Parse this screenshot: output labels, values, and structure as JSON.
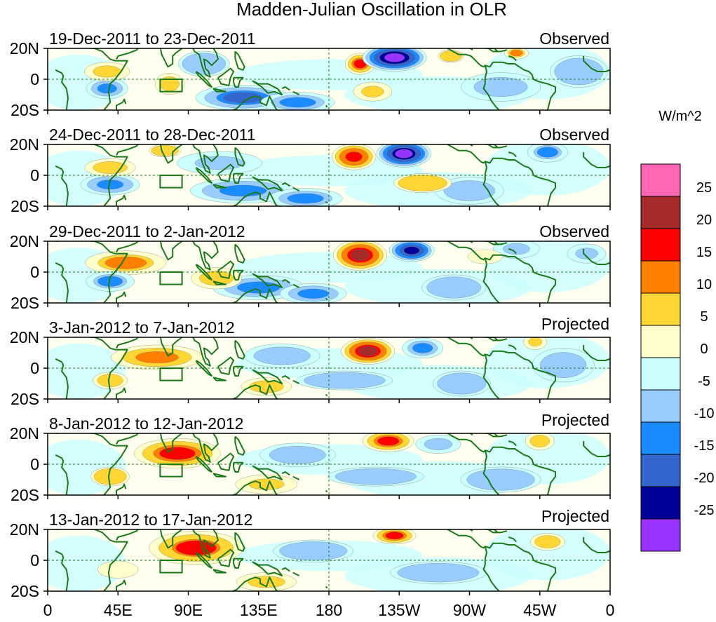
{
  "chart_data": {
    "type": "heatmap",
    "title": "Madden-Julian Oscillation in OLR",
    "variable": "OLR anomaly",
    "units": "W/m^2",
    "x_tick_labels": [
      "0",
      "45E",
      "90E",
      "135E",
      "180",
      "135W",
      "90W",
      "45W",
      "0"
    ],
    "x_ticks_deg": [
      0,
      45,
      90,
      135,
      180,
      225,
      270,
      315,
      360
    ],
    "xlim_deg_east": [
      0,
      360
    ],
    "y_tick_labels": [
      "20N",
      "0",
      "20S"
    ],
    "y_ticks_deg": [
      20,
      0,
      -20
    ],
    "ylim_deg": [
      -20,
      20
    ],
    "colorbar": {
      "label": "W/m^2",
      "tick_labels": [
        "25",
        "20",
        "15",
        "10",
        "5",
        "0",
        "-5",
        "-10",
        "-15",
        "-20",
        "-25"
      ],
      "tick_values": [
        25,
        20,
        15,
        10,
        5,
        0,
        -5,
        -10,
        -15,
        -20,
        -25
      ],
      "bins": [
        {
          "min": 25,
          "max": null,
          "color": "#ff66b3"
        },
        {
          "min": 20,
          "max": 25,
          "color": "#a52a2a"
        },
        {
          "min": 15,
          "max": 20,
          "color": "#ff0000"
        },
        {
          "min": 10,
          "max": 15,
          "color": "#ff7f00"
        },
        {
          "min": 5,
          "max": 10,
          "color": "#ffd633"
        },
        {
          "min": 0,
          "max": 5,
          "color": "#ffffcc"
        },
        {
          "min": -5,
          "max": 0,
          "color": "#ccffff"
        },
        {
          "min": -10,
          "max": -5,
          "color": "#99ccff"
        },
        {
          "min": -15,
          "max": -10,
          "color": "#1a8cff"
        },
        {
          "min": -20,
          "max": -15,
          "color": "#3366cc"
        },
        {
          "min": -25,
          "max": -20,
          "color": "#000099"
        },
        {
          "min": null,
          "max": -25,
          "color": "#9933ff"
        }
      ]
    },
    "panels": [
      {
        "period": "19-Dec-2011 to 23-Dec-2011",
        "status": "Observed",
        "anomalies": [
          {
            "lon": 200,
            "lat": 10,
            "value": 17,
            "sx": 7,
            "sy": 5
          },
          {
            "lon": 222,
            "lat": 14,
            "value": -28,
            "sx": 14,
            "sy": 6
          },
          {
            "lon": 208,
            "lat": -8,
            "value": 10,
            "sx": 10,
            "sy": 5
          },
          {
            "lon": 125,
            "lat": -12,
            "value": -17,
            "sx": 22,
            "sy": 6
          },
          {
            "lon": 160,
            "lat": -15,
            "value": -13,
            "sx": 18,
            "sy": 5
          },
          {
            "lon": 38,
            "lat": -6,
            "value": -14,
            "sx": 10,
            "sy": 5
          },
          {
            "lon": 38,
            "lat": 5,
            "value": 9,
            "sx": 12,
            "sy": 5
          },
          {
            "lon": 78,
            "lat": -3,
            "value": 8,
            "sx": 8,
            "sy": 6
          },
          {
            "lon": 100,
            "lat": 10,
            "value": -6,
            "sx": 16,
            "sy": 8
          },
          {
            "lon": 258,
            "lat": 15,
            "value": 6,
            "sx": 8,
            "sy": 4
          },
          {
            "lon": 300,
            "lat": 17,
            "value": 12,
            "sx": 6,
            "sy": 3
          },
          {
            "lon": 290,
            "lat": -5,
            "value": -8,
            "sx": 22,
            "sy": 8
          },
          {
            "lon": 340,
            "lat": 5,
            "value": -6,
            "sx": 18,
            "sy": 10
          }
        ]
      },
      {
        "period": "24-Dec-2011 to 28-Dec-2011",
        "status": "Observed",
        "anomalies": [
          {
            "lon": 196,
            "lat": 12,
            "value": 20,
            "sx": 10,
            "sy": 6
          },
          {
            "lon": 228,
            "lat": 14,
            "value": -27,
            "sx": 12,
            "sy": 6
          },
          {
            "lon": 125,
            "lat": -10,
            "value": -15,
            "sx": 25,
            "sy": 6
          },
          {
            "lon": 165,
            "lat": -15,
            "value": -13,
            "sx": 18,
            "sy": 5
          },
          {
            "lon": 40,
            "lat": -6,
            "value": -15,
            "sx": 14,
            "sy": 5
          },
          {
            "lon": 40,
            "lat": 5,
            "value": 8,
            "sx": 14,
            "sy": 5
          },
          {
            "lon": 110,
            "lat": 8,
            "value": -10,
            "sx": 22,
            "sy": 6
          },
          {
            "lon": 75,
            "lat": 16,
            "value": 6,
            "sx": 10,
            "sy": 4
          },
          {
            "lon": 320,
            "lat": 15,
            "value": -12,
            "sx": 10,
            "sy": 5
          },
          {
            "lon": 270,
            "lat": -10,
            "value": -7,
            "sx": 20,
            "sy": 8
          },
          {
            "lon": 240,
            "lat": -5,
            "value": 6,
            "sx": 18,
            "sy": 6
          }
        ]
      },
      {
        "period": "29-Dec-2011 to 2-Jan-2012",
        "status": "Observed",
        "anomalies": [
          {
            "lon": 200,
            "lat": 11,
            "value": 22,
            "sx": 12,
            "sy": 7
          },
          {
            "lon": 233,
            "lat": 14,
            "value": -24,
            "sx": 10,
            "sy": 5
          },
          {
            "lon": 50,
            "lat": 6,
            "value": 12,
            "sx": 20,
            "sy": 6
          },
          {
            "lon": 135,
            "lat": -10,
            "value": -14,
            "sx": 22,
            "sy": 6
          },
          {
            "lon": 170,
            "lat": -14,
            "value": -14,
            "sx": 16,
            "sy": 5
          },
          {
            "lon": 40,
            "lat": -6,
            "value": -12,
            "sx": 12,
            "sy": 5
          },
          {
            "lon": 108,
            "lat": -4,
            "value": 8,
            "sx": 14,
            "sy": 6
          },
          {
            "lon": 300,
            "lat": 15,
            "value": -10,
            "sx": 12,
            "sy": 5
          },
          {
            "lon": 345,
            "lat": 12,
            "value": -10,
            "sx": 10,
            "sy": 5
          },
          {
            "lon": 260,
            "lat": -10,
            "value": -6,
            "sx": 20,
            "sy": 8
          },
          {
            "lon": 280,
            "lat": 10,
            "value": 5,
            "sx": 12,
            "sy": 5
          }
        ]
      },
      {
        "period": "3-Jan-2012 to 7-Jan-2012",
        "status": "Projected",
        "anomalies": [
          {
            "lon": 205,
            "lat": 11,
            "value": 22,
            "sx": 12,
            "sy": 6
          },
          {
            "lon": 70,
            "lat": 7,
            "value": 14,
            "sx": 22,
            "sy": 6
          },
          {
            "lon": 240,
            "lat": 13,
            "value": -13,
            "sx": 10,
            "sy": 5
          },
          {
            "lon": 140,
            "lat": -12,
            "value": 8,
            "sx": 14,
            "sy": 5
          },
          {
            "lon": 150,
            "lat": 8,
            "value": -7,
            "sx": 22,
            "sy": 7
          },
          {
            "lon": 40,
            "lat": -8,
            "value": 7,
            "sx": 10,
            "sy": 5
          },
          {
            "lon": 190,
            "lat": -8,
            "value": -6,
            "sx": 30,
            "sy": 6
          },
          {
            "lon": 312,
            "lat": 17,
            "value": 10,
            "sx": 6,
            "sy": 4
          },
          {
            "lon": 330,
            "lat": 2,
            "value": -7,
            "sx": 18,
            "sy": 10
          },
          {
            "lon": 265,
            "lat": -10,
            "value": -6,
            "sx": 18,
            "sy": 8
          }
        ]
      },
      {
        "period": "8-Jan-2012 to 12-Jan-2012",
        "status": "Projected",
        "anomalies": [
          {
            "lon": 83,
            "lat": 7,
            "value": 17,
            "sx": 20,
            "sy": 7
          },
          {
            "lon": 218,
            "lat": 15,
            "value": 17,
            "sx": 12,
            "sy": 5
          },
          {
            "lon": 140,
            "lat": -13,
            "value": 10,
            "sx": 16,
            "sy": 5
          },
          {
            "lon": 250,
            "lat": 13,
            "value": -9,
            "sx": 12,
            "sy": 5
          },
          {
            "lon": 160,
            "lat": 6,
            "value": -7,
            "sx": 22,
            "sy": 7
          },
          {
            "lon": 40,
            "lat": -8,
            "value": 6,
            "sx": 12,
            "sy": 6
          },
          {
            "lon": 315,
            "lat": 15,
            "value": 8,
            "sx": 8,
            "sy": 5
          },
          {
            "lon": 210,
            "lat": -8,
            "value": -6,
            "sx": 30,
            "sy": 6
          },
          {
            "lon": 290,
            "lat": -10,
            "value": -6,
            "sx": 25,
            "sy": 8
          }
        ]
      },
      {
        "period": "13-Jan-2012 to 17-Jan-2012",
        "status": "Projected",
        "anomalies": [
          {
            "lon": 95,
            "lat": 8,
            "value": 16,
            "sx": 22,
            "sy": 8
          },
          {
            "lon": 222,
            "lat": 16,
            "value": 17,
            "sx": 10,
            "sy": 4
          },
          {
            "lon": 140,
            "lat": -14,
            "value": 9,
            "sx": 16,
            "sy": 5
          },
          {
            "lon": 170,
            "lat": 6,
            "value": -6,
            "sx": 25,
            "sy": 7
          },
          {
            "lon": 45,
            "lat": -6,
            "value": 5,
            "sx": 14,
            "sy": 6
          },
          {
            "lon": 320,
            "lat": 12,
            "value": 7,
            "sx": 10,
            "sy": 5
          },
          {
            "lon": 250,
            "lat": -8,
            "value": -6,
            "sx": 30,
            "sy": 7
          }
        ]
      }
    ]
  }
}
